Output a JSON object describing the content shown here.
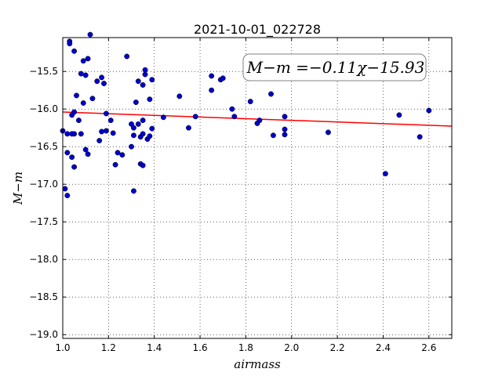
{
  "chart_data": {
    "type": "scatter",
    "title": "2021-10-01_022728",
    "xlabel": "airmass",
    "ylabel": "M−m",
    "xlim": [
      1.0,
      2.7
    ],
    "ylim": [
      -19.05,
      -15.05
    ],
    "x_ticks": [
      1.0,
      1.2,
      1.4,
      1.6,
      1.8,
      2.0,
      2.2,
      2.4,
      2.6
    ],
    "x_tick_labels": [
      "1.0",
      "1.2",
      "1.4",
      "1.6",
      "1.8",
      "2.0",
      "2.2",
      "2.4",
      "2.6"
    ],
    "y_ticks": [
      -15.5,
      -16.0,
      -16.5,
      -17.0,
      -17.5,
      -18.0,
      -18.5,
      -19.0
    ],
    "y_tick_labels": [
      "−15.5",
      "−16.0",
      "−16.5",
      "−17.0",
      "−17.5",
      "−18.0",
      "−18.5",
      "−19.0"
    ],
    "grid": true,
    "annotation": "M−m =−0.11χ−15.93",
    "fit_line": {
      "slope": -0.11,
      "intercept": -15.93,
      "color": "#ff0000"
    },
    "point_color": "#0000cc",
    "series": [
      {
        "x": [
          1.0,
          1.01,
          1.02,
          1.02,
          1.02,
          1.03,
          1.03,
          1.04,
          1.04,
          1.04,
          1.05,
          1.05,
          1.05,
          1.05,
          1.06,
          1.07,
          1.08,
          1.08,
          1.09,
          1.09,
          1.1,
          1.1,
          1.11,
          1.11,
          1.12,
          1.13,
          1.15,
          1.16,
          1.17,
          1.17,
          1.18,
          1.19,
          1.19,
          1.21,
          1.22,
          1.23,
          1.24,
          1.26,
          1.28,
          1.3,
          1.3,
          1.31,
          1.31,
          1.31,
          1.32,
          1.33,
          1.33,
          1.34,
          1.34,
          1.35,
          1.35,
          1.35,
          1.35,
          1.36,
          1.36,
          1.37,
          1.38,
          1.38,
          1.39,
          1.39,
          1.44,
          1.51,
          1.55,
          1.58,
          1.65,
          1.65,
          1.69,
          1.7,
          1.74,
          1.75,
          1.82,
          1.85,
          1.86,
          1.91,
          1.92,
          1.97,
          1.97,
          1.97,
          2.16,
          2.41,
          2.47,
          2.56,
          2.6
        ],
        "y": [
          -16.29,
          -17.06,
          -16.58,
          -16.33,
          -17.15,
          -15.1,
          -15.13,
          -16.64,
          -16.08,
          -16.33,
          -16.04,
          -15.23,
          -16.77,
          -16.33,
          -15.82,
          -16.15,
          -16.33,
          -15.53,
          -15.92,
          -15.36,
          -15.55,
          -16.54,
          -16.6,
          -15.33,
          -15.01,
          -15.86,
          -15.63,
          -16.42,
          -15.58,
          -16.3,
          -15.66,
          -16.29,
          -16.06,
          -16.15,
          -16.32,
          -16.74,
          -16.58,
          -16.61,
          -15.3,
          -16.2,
          -16.5,
          -16.35,
          -16.25,
          -17.09,
          -15.91,
          -15.63,
          -16.2,
          -16.37,
          -16.73,
          -15.68,
          -16.33,
          -16.75,
          -16.15,
          -15.48,
          -15.54,
          -16.4,
          -16.36,
          -15.87,
          -15.61,
          -16.26,
          -16.11,
          -15.83,
          -16.25,
          -16.1,
          -15.56,
          -15.75,
          -15.61,
          -15.59,
          -16.0,
          -16.1,
          -15.9,
          -16.19,
          -16.15,
          -15.8,
          -16.35,
          -16.27,
          -16.34,
          -16.1,
          -16.31,
          -16.86,
          -16.08,
          -16.37,
          -16.02
        ]
      }
    ]
  }
}
